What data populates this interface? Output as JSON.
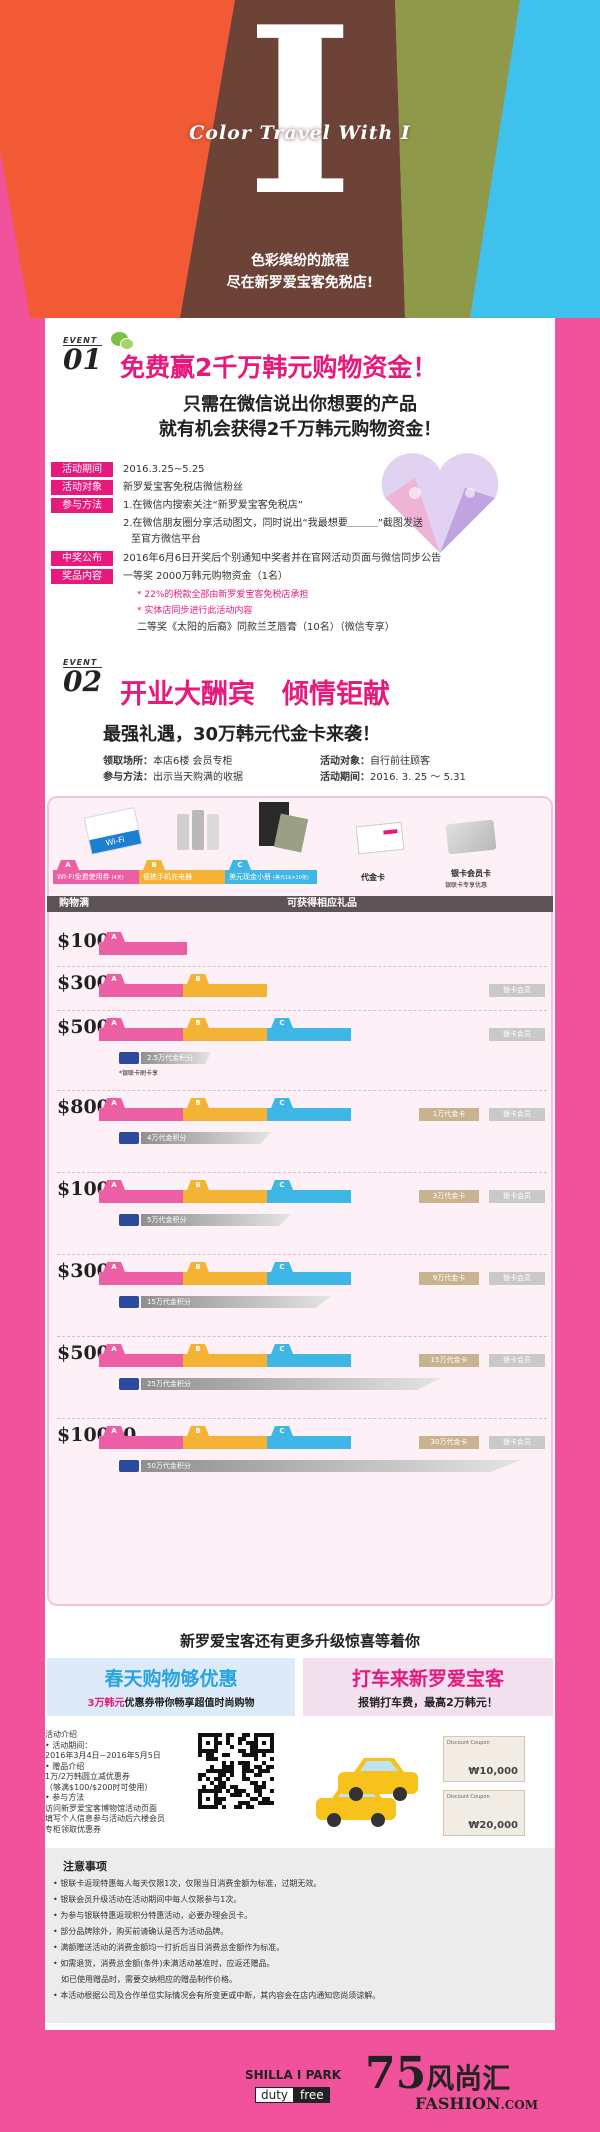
{
  "hero": {
    "letter": "I",
    "title": "Color  Travel  With  I",
    "sub1": "色彩缤纷的旅程",
    "sub2": "尽在新罗爱宝客免税店!"
  },
  "event1": {
    "label": "EVENT",
    "num": "01",
    "headline": "免费赢2千万韩元购物资金！",
    "sub1": "只需在微信说出你想要的产品",
    "sub2": "就有机会获得2千万韩元购物资金！",
    "rows": [
      {
        "tag": "活动期间",
        "text": "2016.3.25~5.25"
      },
      {
        "tag": "活动对象",
        "text": "新罗爱宝客免税店微信粉丝"
      },
      {
        "tag": "参与方法",
        "text": "1.在微信内搜索关注“新罗爱宝客免税店”"
      }
    ],
    "method2": "2.在微信朋友圈分享活动图文，同时说出“我最想要＿＿＿”截图发送",
    "method3": "至官方微信平台",
    "announce_tag": "中奖公布",
    "announce": "2016年6月6日开奖后个别通知中奖者并在官网活动页面与微信同步公告",
    "prize_tag": "奖品内容",
    "prize1": "一等奖 2000万韩元购物资金（1名）",
    "note1": "* 22%的税款全部由新罗爱宝客免税店承担",
    "note2": "* 实体店同步进行此活动内容",
    "prize2": "二等奖《太阳的后裔》同款兰芝唇膏（10名）（微信专享）"
  },
  "event2": {
    "label": "EVENT",
    "num": "02",
    "headline": "开业大酬宾　倾情钜献",
    "sub": "最强礼遇，30万韩元代金卡来袭！",
    "place_k": "领取场所：",
    "place_v": "本店6楼 会员专柜",
    "way_k": "参与方法：",
    "way_v": "出示当天购满的收据",
    "target_k": "活动对象：",
    "target_v": "自行前往顾客",
    "period_k": "活动期间：",
    "period_v": "2016. 3. 25 ～ 5.31"
  },
  "gifts": {
    "a": "WI-FI免费使用券",
    "a_small": "(4天)",
    "b": "便携手机充电器",
    "c": "美元现金小册",
    "c_small": "(美元1$×10张)",
    "d": "代金卡",
    "e": "银卡会员卡",
    "e_sub": "银联卡专享优惠",
    "wifi": "Wi-Fi",
    "col_left": "购物满",
    "col_right": "可获得相应礼品",
    "tab_a": "A",
    "tab_b": "B",
    "tab_c": "C",
    "vip": "银卡会员",
    "unionpay_note": "*银联卡刷卡享",
    "tiers": [
      {
        "amount": "$100"
      },
      {
        "amount": "$300"
      },
      {
        "amount": "$500",
        "points": "2.5万代金积分"
      },
      {
        "amount": "$800",
        "voucher": "1万代金卡",
        "points": "4万代金积分"
      },
      {
        "amount": "$1000",
        "voucher": "3万代金卡",
        "points": "5万代金积分"
      },
      {
        "amount": "$3000",
        "voucher": "9万代金卡",
        "points": "15万代金积分"
      },
      {
        "amount": "$5000",
        "voucher": "15万代金卡",
        "points": "25万代金积分"
      },
      {
        "amount": "$10000",
        "voucher": "30万代金卡",
        "points": "50万代金积分"
      }
    ]
  },
  "more": {
    "title": "新罗爱宝客还有更多升级惊喜等着你",
    "l_title": "春天购物够优惠",
    "l_hl": "3万韩元",
    "l_rest": "优惠券带你畅享超值时尚购物",
    "r_title": "打车来新罗爱宝客",
    "r_sub": "报销打车费，最高2万韩元！",
    "info": [
      "活动介绍",
      "• 活动期间：",
      "2016年3月4日~2016年5月5日",
      "• 赠品介绍",
      "1万/2万韩圆立减优惠券",
      "（够满$100/$200时可使用）",
      "• 参与方法",
      "访问新罗爱宝客博物馆活动页面",
      "填写个人信息参与活动后六楼会员",
      "专柜领取优惠券"
    ],
    "c1": "₩10,000",
    "c2": "₩20,000",
    "coupon": "Discount Coupon"
  },
  "notice": {
    "title": "注意事项",
    "items": [
      "• 银联卡返现特惠每人每天仅限1次，仅限当日消费金额为标准，过期无效。",
      "• 银联会员升级活动在活动期间中每人仅限参与1次。",
      "• 为参与银联特惠返现积分特惠活动，必要办理会员卡。",
      "• 部分品牌除外，购买前请确认是否为活动品牌。",
      "• 满额赠送活动的消费金额均一打折后当日消费总金额作为标准。",
      "• 如需退货，消费总金额(条件)未满活动基准时，应返还赠品。",
      "　如已使用赠品时，需要交纳相应的赠品制作价格。",
      "• 本活动根据公司及合作单位实际情况会有所变更或中断，其内容会在店内通知您尚须谅解。"
    ]
  },
  "footer": {
    "b1": "SHILLA",
    "b2": "I PARK",
    "b3": "duty",
    "b4": "free",
    "w1": "7",
    "w2": "5",
    "w3": "风尚汇",
    "w4": "FASHION",
    "w5": ".COM"
  },
  "colors": {
    "pink": "#e8197c",
    "bg": "#f0529b",
    "blue": "#4ec1ec",
    "yellow": "#f8b93c"
  }
}
